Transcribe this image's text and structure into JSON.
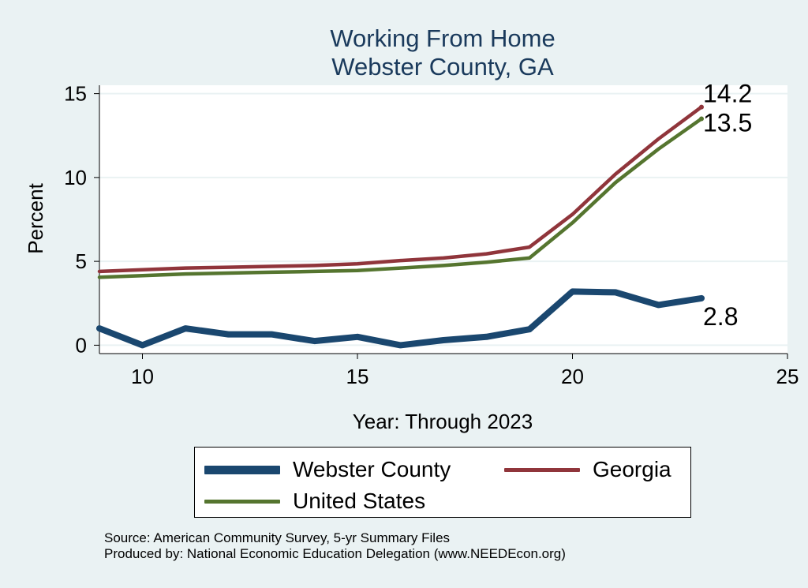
{
  "chart_data": {
    "type": "line",
    "title": "Working From Home",
    "subtitle": "Webster County, GA",
    "xlabel": "Year: Through 2023",
    "ylabel": "Percent",
    "xlim": [
      9,
      25
    ],
    "ylim": [
      -0.5,
      15.5
    ],
    "xticks": [
      10,
      15,
      20,
      25
    ],
    "yticks": [
      0,
      5,
      10,
      15
    ],
    "grid": true,
    "legend_position": "bottom",
    "x": [
      9,
      10,
      11,
      12,
      13,
      14,
      15,
      16,
      17,
      18,
      19,
      20,
      21,
      22,
      23
    ],
    "series": [
      {
        "name": "Webster County",
        "color": "#1a476f",
        "values": [
          1.0,
          0.0,
          1.0,
          0.65,
          0.65,
          0.25,
          0.5,
          0.0,
          0.3,
          0.5,
          0.95,
          3.2,
          3.15,
          2.4,
          2.8
        ],
        "end_label": "2.8"
      },
      {
        "name": "Georgia",
        "color": "#90353b",
        "values": [
          4.4,
          4.5,
          4.6,
          4.65,
          4.7,
          4.75,
          4.85,
          5.05,
          5.2,
          5.45,
          5.85,
          7.8,
          10.2,
          12.3,
          14.2
        ],
        "end_label": "14.2"
      },
      {
        "name": "United States",
        "color": "#55752f",
        "values": [
          4.05,
          4.15,
          4.25,
          4.3,
          4.35,
          4.4,
          4.45,
          4.6,
          4.75,
          4.95,
          5.2,
          7.3,
          9.7,
          11.7,
          13.5
        ],
        "end_label": "13.5"
      }
    ]
  },
  "legend": {
    "items": [
      "Webster County",
      "Georgia",
      "United States"
    ]
  },
  "source": {
    "line1": "Source: American Community Survey, 5-yr Summary Files",
    "line2": "Produced by: National Economic Education Delegation (www.NEEDEcon.org)"
  }
}
